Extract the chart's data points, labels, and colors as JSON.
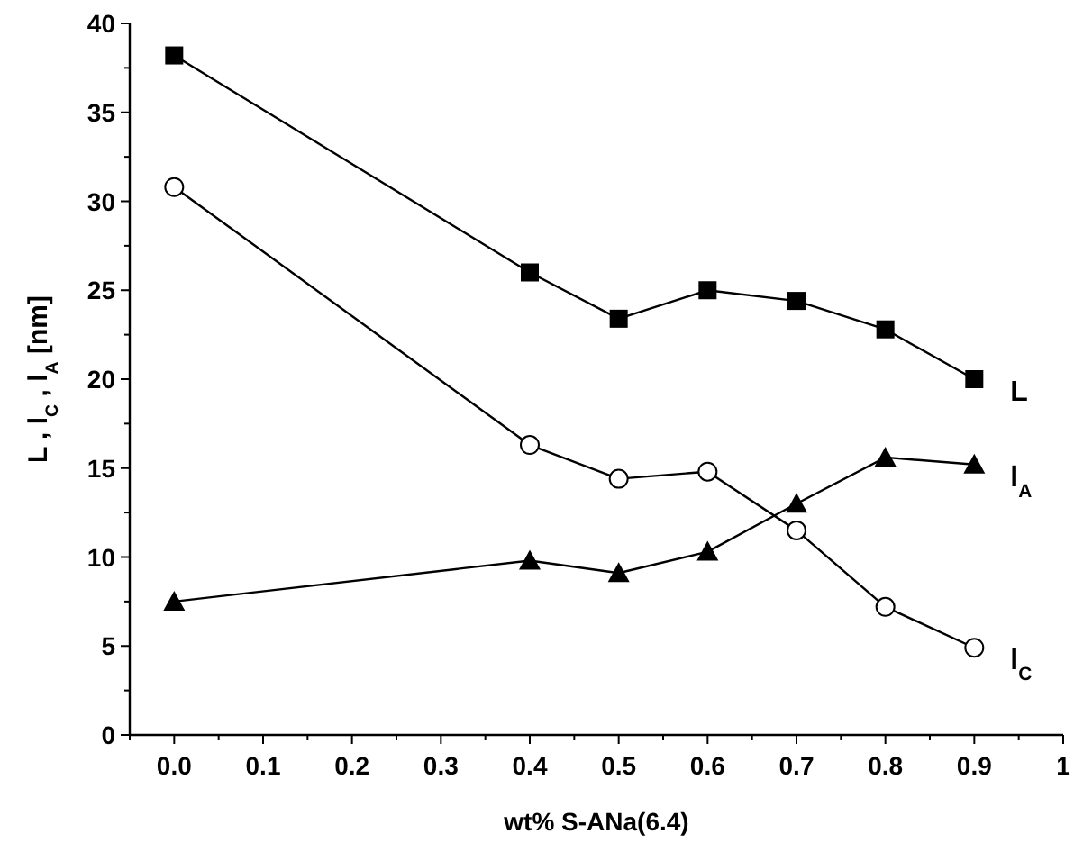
{
  "chart_data": {
    "type": "line",
    "xlabel": "wt% S-ANa(6.4)",
    "ylabel": "L , l$_{C}$ , l$_{A}$ [nm]",
    "x": [
      0.0,
      0.4,
      0.5,
      0.6,
      0.7,
      0.8,
      0.9
    ],
    "series": [
      {
        "name": "L",
        "color": "#000000",
        "marker": "square",
        "values": [
          38.2,
          26.0,
          23.4,
          25.0,
          24.4,
          22.8,
          20.0
        ]
      },
      {
        "name": "l$_{A}$",
        "color": "#000000",
        "marker": "triangle",
        "values": [
          7.5,
          9.8,
          9.1,
          10.3,
          13.0,
          15.6,
          15.2
        ]
      },
      {
        "name": "l$_{C}$",
        "color": "#000000",
        "marker": "circle",
        "values": [
          30.8,
          16.3,
          14.4,
          14.8,
          11.5,
          7.2,
          4.9
        ]
      }
    ],
    "xlim": [
      -0.05,
      1.0
    ],
    "xticks": [
      {
        "value": -0.05,
        "label": null
      },
      {
        "value": 0.0,
        "label": "0.0"
      },
      {
        "value": 0.05,
        "label": null
      },
      {
        "value": 0.1,
        "label": "0.1"
      },
      {
        "value": 0.15,
        "label": null
      },
      {
        "value": 0.2,
        "label": "0.2"
      },
      {
        "value": 0.25,
        "label": null
      },
      {
        "value": 0.3,
        "label": "0.3"
      },
      {
        "value": 0.35,
        "label": null
      },
      {
        "value": 0.4,
        "label": "0.4"
      },
      {
        "value": 0.45,
        "label": null
      },
      {
        "value": 0.5,
        "label": "0.5"
      },
      {
        "value": 0.55,
        "label": null
      },
      {
        "value": 0.6,
        "label": "0.6"
      },
      {
        "value": 0.65,
        "label": null
      },
      {
        "value": 0.7,
        "label": "0.7"
      },
      {
        "value": 0.75,
        "label": null
      },
      {
        "value": 0.8,
        "label": "0.8"
      },
      {
        "value": 0.85,
        "label": null
      },
      {
        "value": 0.9,
        "label": "0.9"
      },
      {
        "value": 0.95,
        "label": null
      },
      1
    ],
    "ylim": [
      0,
      40
    ],
    "yticks": [
      0,
      {
        "value": 2.5,
        "label": null
      },
      5,
      {
        "value": 7.5,
        "label": null
      },
      10,
      {
        "value": 12.5,
        "label": null
      },
      15,
      {
        "value": 17.5,
        "label": null
      },
      20,
      {
        "value": 22.5,
        "label": null
      },
      25,
      {
        "value": 27.5,
        "label": null
      },
      30,
      {
        "value": 32.5,
        "label": null
      },
      35,
      {
        "value": 37.5,
        "label": null
      },
      40
    ],
    "grid": false,
    "legend": false,
    "line_style": "solid"
  }
}
